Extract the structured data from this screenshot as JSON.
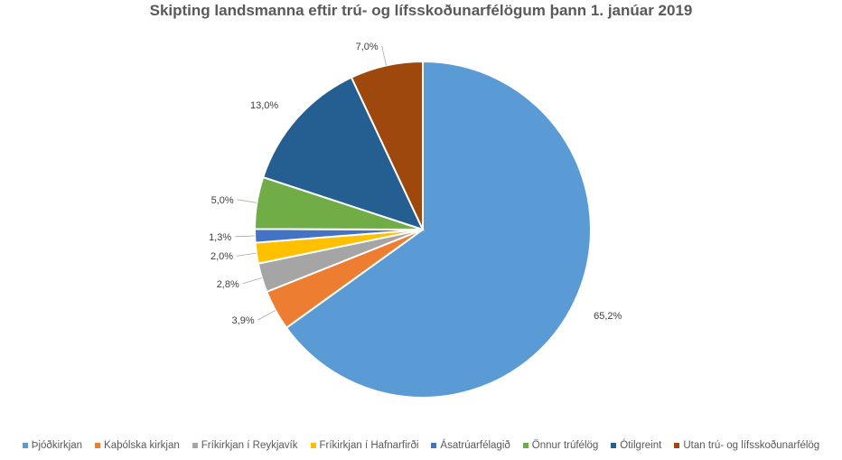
{
  "chart_data": {
    "type": "pie",
    "title": "Skipting landsmanna eftir trú- og lífsskoðunarfélögum þann 1. janúar 2019",
    "slices": [
      {
        "name": "Þjóðkirkjan",
        "value": 65.2,
        "label": "65,2%",
        "color": "#5b9bd5"
      },
      {
        "name": "Kaþólska kirkjan",
        "value": 3.9,
        "label": "3,9%",
        "color": "#ed7d31"
      },
      {
        "name": "Fríkirkjan í Reykjavík",
        "value": 2.8,
        "label": "2,8%",
        "color": "#a5a5a5"
      },
      {
        "name": "Fríkirkjan í Hafnarfirði",
        "value": 2.0,
        "label": "2,0%",
        "color": "#ffc000"
      },
      {
        "name": "Ásatrúarfélagið",
        "value": 1.3,
        "label": "1,3%",
        "color": "#4472c4"
      },
      {
        "name": "Önnur trúfélög",
        "value": 5.0,
        "label": "5,0%",
        "color": "#70ad47"
      },
      {
        "name": "Ótilgreint",
        "value": 13.0,
        "label": "13,0%",
        "color": "#255e91"
      },
      {
        "name": "Utan trú- og lífsskoðunarfélög",
        "value": 7.0,
        "label": "7,0%",
        "color": "#9e480e"
      }
    ],
    "legend_position": "bottom"
  }
}
